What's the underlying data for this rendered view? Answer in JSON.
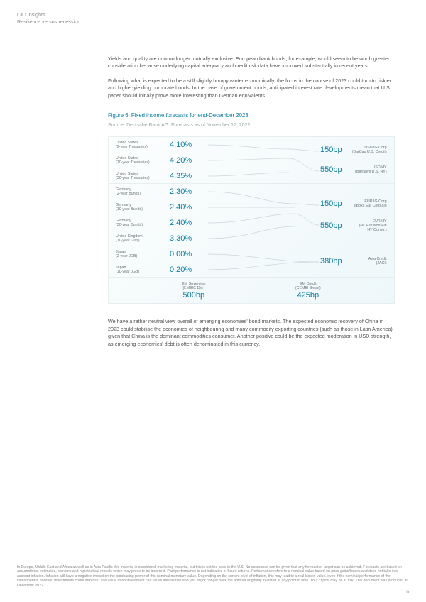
{
  "header": {
    "line1": "CIO Insights",
    "line2": "Resilience versus recession"
  },
  "paragraphs": {
    "p1": "Yields and quality are now no longer mutually exclusive. European bank bonds, for example, would seem to be worth greater consideration because underlying capital adequacy and credit risk data have improved substantially in recent years.",
    "p2": "Following what is expected to be a still slightly bumpy winter economically, the focus in the course of 2023 could turn to riskier and higher-yielding corporate bonds. In the case of government bonds, anticipated interest rate developments mean that U.S. paper should initially prove more interesting than German equivalents.",
    "p3": "We have a rather neutral view overall of emerging economies' bond markets. The expected economic recovery of China in 2023 could stabilise the economies of neighbouring and many commodity exporting countries (such as those in Latin America) given that China is the dominant commodities consumer. Another positive could be the expected moderation in USD strength, as emerging economies' debt is often denominated in this currency."
  },
  "figure": {
    "title": "Figure 6: Fixed income forecasts for end-December 2023",
    "source": "Source: Deutsche Bank AG. Forecasts as of November 17, 2022."
  },
  "forecast": {
    "group_us": {
      "a_label": "United States\n(2-year Treasuries)",
      "a_val": "4.10%",
      "b_label": "United States\n(10-year Treasuries)",
      "b_val": "4.20%",
      "c_label": "United States\n(30-year Treasuries)",
      "c_val": "4.35%",
      "sp1_val": "150bp",
      "sp1_label": "USD IG Corp\n(BarCap U.S. Credit)",
      "sp2_val": "550bp",
      "sp2_label": "USD HY\n(Barclays U.S. HY)"
    },
    "group_eu": {
      "a_label": "Germany\n(2-year Bunds)",
      "a_val": "2.30%",
      "b_label": "Germany\n(10-year Bunds)",
      "b_val": "2.40%",
      "c_label": "Germany\n(30-year Bunds)",
      "c_val": "2.40%",
      "d_label": "United Kingdom\n(10-year Gilts)",
      "d_val": "3.30%",
      "sp1_val": "150bp",
      "sp1_label": "EUR IG Corp\n(iBoxx Eur Corp all)",
      "sp2_val": "550bp",
      "sp2_label": "EUR HY\n(ML Eur Non-Fin\nHY Constr.)"
    },
    "group_jp": {
      "a_label": "Japan\n(2-year JGB)",
      "a_val": "0.00%",
      "b_label": "Japan\n(10-year JGB)",
      "b_val": "0.20%",
      "sp1_val": "380bp",
      "sp1_label": "Asia Credit\n(JACI)"
    },
    "bottom": {
      "l_lbl": "EM Sovereign\n(EMBIG Div.)",
      "l_val": "500bp",
      "r_lbl": "EM Credit\n(CEMBI Broad)",
      "r_val": "425bp"
    }
  },
  "disclaimer": "In Europe, Middle East and Africa as well as in Asia Pacific this material is considered marketing material, but this is not the case in the U.S. No assurance can be given that any forecast or target can be achieved. Forecasts are based on assumptions, estimates, opinions and hypothetical models which may prove to be incorrect. Past performance is not indicative of future returns. Performance refers to a nominal value based on price gains/losses and does not take into account inflation. Inflation will have a negative impact on the purchasing power of this nominal monetary value. Depending on the current level of inflation, this may lead to a real loss in value, even if the nominal performance of the investment is positive. Investments come with risk. The value of an investment can fall as well as rise and you might not get back the amount originally invested at any point in time. Your capital may be at risk. This document was produced in December 2022.",
  "pagenum": "10"
}
